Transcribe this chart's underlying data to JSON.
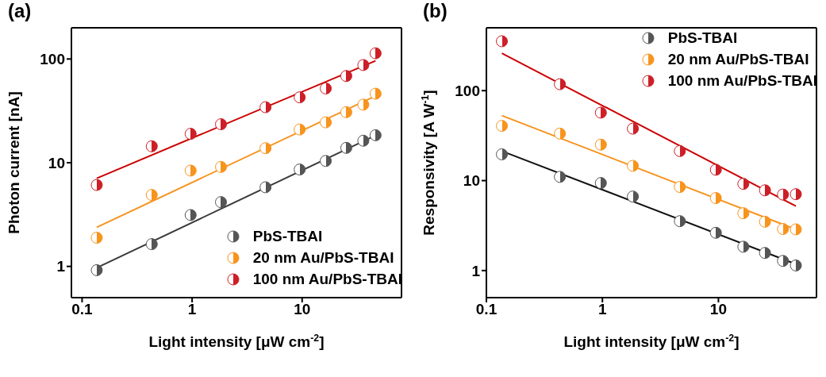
{
  "chart_data": [
    {
      "type": "scatter",
      "title": "(a)",
      "xlabel": "Light intensity [μW cm$^{-2}$]",
      "ylabel": "Photon current [nA]",
      "log": "xy",
      "xlim": [
        0.08,
        80
      ],
      "xticks": [
        0.1,
        1,
        10
      ],
      "ylim": [
        0.5,
        200
      ],
      "yticks": [
        1,
        10,
        100
      ],
      "legend": "bottom right",
      "marker": "circle",
      "series": [
        {
          "name": "PbS-TBAI",
          "color": "#555555",
          "x": [
            0.136,
            0.43,
            0.97,
            1.83,
            4.65,
            9.5,
            16.4,
            25.2,
            36,
            46.5
          ],
          "values": [
            0.92,
            1.64,
            3.13,
            4.17,
            5.8,
            8.6,
            10.4,
            13.9,
            16.3,
            18.4
          ]
        },
        {
          "name": "20 nm Au/PbS-TBAI",
          "color": "#f7941d",
          "x": [
            0.136,
            0.43,
            0.97,
            1.83,
            4.65,
            9.5,
            16.4,
            25.2,
            36,
            46.5
          ],
          "values": [
            1.89,
            4.89,
            8.4,
            9.1,
            13.8,
            20.9,
            24.5,
            30.7,
            36.3,
            46.3
          ]
        },
        {
          "name": "100 nm Au/PbS-TBAI",
          "color": "#cc1f27",
          "x": [
            0.136,
            0.43,
            0.97,
            1.83,
            4.65,
            9.5,
            16.4,
            25.2,
            36,
            46.5
          ],
          "values": [
            6.1,
            14.4,
            19,
            23.5,
            34.3,
            42.7,
            52,
            68.6,
            87.5,
            113.5
          ]
        },
        {
          "type": "line",
          "marker": "none",
          "color": "#3a3a3a",
          "x": [
            0.136,
            46.5
          ],
          "values": [
            0.97,
            18.3
          ]
        },
        {
          "type": "line",
          "marker": "none",
          "color": "#f7931e",
          "x": [
            0.136,
            46.5
          ],
          "values": [
            2.38,
            44
          ]
        },
        {
          "type": "line",
          "marker": "none",
          "color": "#cc0000",
          "x": [
            0.136,
            46.5
          ],
          "values": [
            7.08,
            96
          ]
        }
      ]
    },
    {
      "type": "scatter",
      "title": "(b)",
      "xlabel": "Light intensity [μW cm$^{-2}$]",
      "ylabel": "Responsivity [A W$^{-1}$]",
      "log": "xy",
      "xlim": [
        0.1,
        70
      ],
      "xticks": [
        0.1,
        1,
        10
      ],
      "ylim": [
        0.5,
        500
      ],
      "yticks": [
        1,
        10,
        100
      ],
      "legend": "top right",
      "marker": "circle",
      "series": [
        {
          "name": "PbS-TBAI",
          "color": "#555555",
          "x": [
            0.136,
            0.43,
            0.97,
            1.83,
            4.65,
            9.5,
            16.4,
            25.2,
            36,
            46.5
          ],
          "values": [
            19.6,
            11,
            9.4,
            6.65,
            3.54,
            2.63,
            1.84,
            1.57,
            1.28,
            1.14
          ]
        },
        {
          "name": "20 nm Au/PbS-TBAI",
          "color": "#f7941d",
          "x": [
            0.136,
            0.43,
            0.97,
            1.83,
            4.65,
            9.5,
            16.4,
            25.2,
            36,
            46.5
          ],
          "values": [
            40.6,
            33.3,
            25.1,
            14.6,
            8.5,
            6.4,
            4.34,
            3.49,
            2.9,
            2.87
          ]
        },
        {
          "name": "100 nm Au/PbS-TBAI",
          "color": "#cc1f27",
          "x": [
            0.136,
            0.43,
            0.97,
            1.83,
            4.65,
            9.5,
            16.4,
            25.2,
            36,
            46.5
          ],
          "values": [
            354,
            118,
            57,
            37.8,
            21.3,
            13.2,
            9.2,
            7.8,
            7,
            7.06
          ]
        },
        {
          "type": "line",
          "marker": "none",
          "color": "#111111",
          "x": [
            0.136,
            46.5
          ],
          "values": [
            21.3,
            1.18
          ]
        },
        {
          "type": "line",
          "marker": "none",
          "color": "#f7931e",
          "x": [
            0.136,
            46.5
          ],
          "values": [
            52.8,
            2.87
          ]
        },
        {
          "type": "line",
          "marker": "none",
          "color": "#cc0000",
          "x": [
            0.136,
            46.5
          ],
          "values": [
            260,
            5.2
          ]
        }
      ]
    }
  ]
}
